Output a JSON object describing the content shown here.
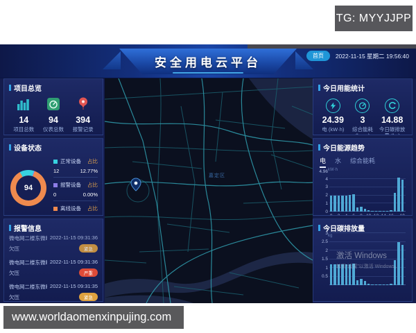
{
  "watermarks": {
    "tg": "TG: MYYJJPP",
    "url": "www.worldaomenxinpujing.com",
    "windows_line1": "激活 Windows",
    "windows_line2": "转到“设置”以激活 Windows。"
  },
  "header": {
    "title": "安全用电云平台",
    "home_badge": "首页",
    "datetime": "2022-11-15 星期二 19:56:40"
  },
  "left": {
    "overview": {
      "title": "项目总览",
      "stats": [
        {
          "icon": "buildings-icon",
          "value": "14",
          "label": "项目总数"
        },
        {
          "icon": "meter-icon",
          "value": "94",
          "label": "仪表总数"
        },
        {
          "icon": "alarm-balloon-icon",
          "value": "394",
          "label": "报警记录"
        }
      ]
    },
    "device_status": {
      "title": "设备状态",
      "donut_total": "94",
      "legend": [
        {
          "name": "正常设备",
          "ratio_label": "占比",
          "count": "12",
          "percent": "12.77%",
          "color": "#38d2e0"
        },
        {
          "name": "报警设备",
          "ratio_label": "占比",
          "count": "0",
          "percent": "0.00%",
          "color": "#8d7de6"
        },
        {
          "name": "离线设备",
          "ratio_label": "占比",
          "count": "",
          "percent": "",
          "color": "#ef8a4e"
        }
      ]
    },
    "alarms": {
      "title": "报警信息",
      "items": [
        {
          "name": "微电网二楼东微断测试",
          "time": "2022-11-15 09:31:36",
          "type": "欠压",
          "level": "紧急",
          "level_color": "#dfa13f"
        },
        {
          "name": "微电网二楼东微断测试",
          "time": "2022-11-15 09:31:36",
          "type": "欠压",
          "level": "严重",
          "level_color": "#dd4b38"
        },
        {
          "name": "微电网二楼东微断测试",
          "time": "2022-11-15 09:31:35",
          "type": "欠压",
          "level": "紧急",
          "level_color": "#dfa13f"
        }
      ]
    }
  },
  "map": {
    "label": "嘉定区"
  },
  "right": {
    "energy_stats": {
      "title": "今日用能统计",
      "stats": [
        {
          "icon": "lightning-icon",
          "value": "24.39",
          "label": "电 (kW·h)"
        },
        {
          "icon": "gauge-icon",
          "value": "3",
          "label": "综合能耗 (kgce)"
        },
        {
          "icon": "carbon-icon",
          "value": "14.88",
          "label": "今日碳排放量 (kg)"
        }
      ]
    },
    "energy_trend": {
      "title": "今日能源趋势",
      "tabs": [
        "电",
        "水",
        "综合能耗"
      ],
      "active_tab": "电"
    },
    "carbon": {
      "title": "今日碳排放量"
    }
  },
  "chart_data": [
    {
      "type": "pie",
      "title": "设备状态",
      "center_value": "94",
      "labels": [
        "正常设备",
        "报警设备",
        "离线设备"
      ],
      "values_percent": [
        12.77,
        0.0,
        87.23
      ],
      "counts": [
        12,
        0,
        null
      ],
      "colors": [
        "#38d2e0",
        "#8d7de6",
        "#ef8a4e"
      ]
    },
    {
      "type": "bar",
      "title": "今日能源趋势",
      "ylabel": "kW·h",
      "ylim": [
        0,
        4.96
      ],
      "yticks": [
        0,
        1,
        2,
        3,
        4,
        4.96
      ],
      "x": [
        0,
        1,
        2,
        3,
        4,
        5,
        6,
        7,
        8,
        9,
        10,
        11,
        12,
        13,
        14,
        15,
        16,
        17,
        18,
        19
      ],
      "xtick_hours": [
        0,
        2,
        4,
        6,
        8,
        10,
        12,
        14,
        16,
        19
      ],
      "values": [
        2.0,
        2.0,
        2.0,
        2.0,
        2.0,
        2.05,
        2.1,
        0.55,
        0.6,
        0.35,
        0.15,
        0.1,
        0.08,
        0.08,
        0.08,
        0.1,
        0.15,
        2.3,
        4.2,
        3.9
      ],
      "legend_position": "top",
      "grid": true
    },
    {
      "type": "bar",
      "title": "今日碳排放量",
      "ylabel": "kg",
      "ylim": [
        0,
        3.3
      ],
      "yticks": [
        0.5,
        1,
        1.5,
        2,
        2.5,
        3
      ],
      "x": [
        0,
        1,
        2,
        3,
        4,
        5,
        6,
        7,
        8,
        9,
        10,
        11,
        12,
        13,
        14,
        15,
        16,
        17,
        18,
        19
      ],
      "values": [
        1.2,
        1.2,
        1.2,
        1.2,
        1.2,
        1.22,
        1.25,
        0.3,
        0.35,
        0.25,
        0.1,
        0.06,
        0.05,
        0.05,
        0.05,
        0.06,
        0.1,
        1.45,
        2.5,
        2.35
      ],
      "grid": true
    }
  ]
}
